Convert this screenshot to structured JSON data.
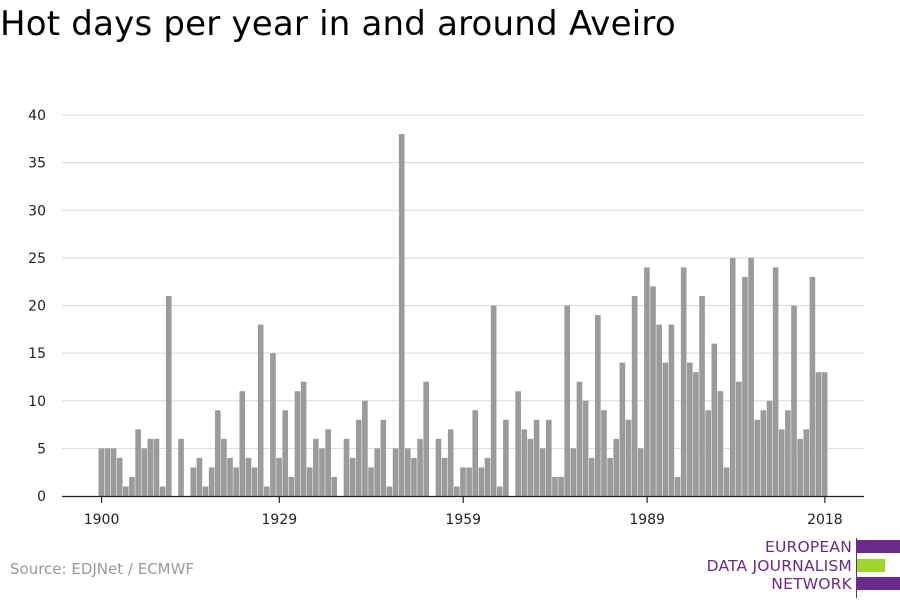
{
  "title": "Hot days per year in and around Aveiro",
  "source": "Source: EDJNet / ECMWF",
  "logo": {
    "lines": [
      "EUROPEAN",
      "DATA JOURNALISM",
      "NETWORK"
    ]
  },
  "colors": {
    "bar": "#9b9b9b",
    "grid": "#d9d9d9",
    "axis": "#222222",
    "brand_purple": "#6a2a8c",
    "brand_green": "#9ed62a",
    "source_text": "#9a9a9a"
  },
  "chart_data": {
    "type": "bar",
    "title": "Hot days per year in and around Aveiro",
    "xlabel": "",
    "ylabel": "",
    "ylim": [
      0,
      40
    ],
    "y_ticks": [
      0,
      5,
      10,
      15,
      20,
      25,
      30,
      35,
      40
    ],
    "x_ticks": [
      1900,
      1929,
      1959,
      1989,
      2018
    ],
    "grid": true,
    "x": [
      1900,
      1901,
      1902,
      1903,
      1904,
      1905,
      1906,
      1907,
      1908,
      1909,
      1910,
      1911,
      1912,
      1913,
      1914,
      1915,
      1916,
      1917,
      1918,
      1919,
      1920,
      1921,
      1922,
      1923,
      1924,
      1925,
      1926,
      1927,
      1928,
      1929,
      1930,
      1931,
      1932,
      1933,
      1934,
      1935,
      1936,
      1937,
      1938,
      1939,
      1940,
      1941,
      1942,
      1943,
      1944,
      1945,
      1946,
      1947,
      1948,
      1949,
      1950,
      1951,
      1952,
      1953,
      1954,
      1955,
      1956,
      1957,
      1958,
      1959,
      1960,
      1961,
      1962,
      1963,
      1964,
      1965,
      1966,
      1967,
      1968,
      1969,
      1970,
      1971,
      1972,
      1973,
      1974,
      1975,
      1976,
      1977,
      1978,
      1979,
      1980,
      1981,
      1982,
      1983,
      1984,
      1985,
      1986,
      1987,
      1988,
      1989,
      1990,
      1991,
      1992,
      1993,
      1994,
      1995,
      1996,
      1997,
      1998,
      1999,
      2000,
      2001,
      2002,
      2003,
      2004,
      2005,
      2006,
      2007,
      2008,
      2009,
      2010,
      2011,
      2012,
      2013,
      2014,
      2015,
      2016,
      2017,
      2018,
      2019,
      2020
    ],
    "values": [
      5,
      5,
      5,
      4,
      1,
      2,
      7,
      5,
      6,
      6,
      1,
      21,
      0,
      6,
      0,
      3,
      4,
      1,
      3,
      9,
      6,
      4,
      3,
      11,
      4,
      3,
      18,
      1,
      15,
      4,
      9,
      2,
      11,
      12,
      3,
      6,
      5,
      7,
      2,
      0,
      6,
      4,
      8,
      10,
      3,
      5,
      8,
      1,
      5,
      38,
      5,
      4,
      6,
      12,
      0,
      6,
      4,
      7,
      1,
      3,
      3,
      9,
      3,
      4,
      20,
      1,
      8,
      0,
      11,
      7,
      6,
      8,
      5,
      8,
      2,
      2,
      20,
      5,
      12,
      10,
      4,
      19,
      9,
      4,
      6,
      14,
      8,
      21,
      5,
      24,
      22,
      18,
      14,
      18,
      2,
      24,
      14,
      13,
      21,
      9,
      16,
      11,
      3,
      25,
      12,
      23,
      25,
      8,
      9,
      10,
      24,
      7,
      9,
      20,
      6,
      7,
      23,
      13,
      13,
      0,
      0
    ]
  }
}
